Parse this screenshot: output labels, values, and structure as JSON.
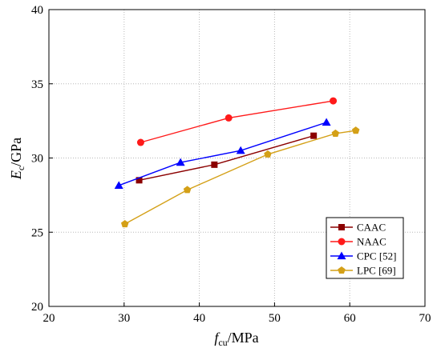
{
  "chart_data": {
    "type": "line",
    "xlabel": {
      "main": "f",
      "sub": "cu",
      "unit": "/MPa"
    },
    "ylabel": {
      "main": "E",
      "sub": "c",
      "unit": "/GPa"
    },
    "xlim": [
      20,
      70
    ],
    "ylim": [
      20,
      40
    ],
    "xticks": [
      20,
      30,
      40,
      50,
      60,
      70
    ],
    "yticks": [
      20,
      25,
      30,
      35,
      40
    ],
    "grid": true,
    "legend_position": "bottom-right",
    "series": [
      {
        "name": "CAAC",
        "color": "#8b0000",
        "marker": "square",
        "points": [
          [
            32.0,
            28.5
          ],
          [
            42.0,
            29.55
          ],
          [
            55.2,
            31.5
          ]
        ]
      },
      {
        "name": "NAAC",
        "color": "#ff1a1a",
        "marker": "circle",
        "points": [
          [
            32.2,
            31.05
          ],
          [
            43.9,
            32.7
          ],
          [
            57.8,
            33.85
          ]
        ]
      },
      {
        "name": "CPC [52]",
        "color": "#0000ff",
        "marker": "triangle",
        "points": [
          [
            29.3,
            28.15
          ],
          [
            37.5,
            29.7
          ],
          [
            45.5,
            30.5
          ],
          [
            56.9,
            32.4
          ]
        ]
      },
      {
        "name": "LPC [69]",
        "color": "#d4a017",
        "marker": "pentagon",
        "points": [
          [
            30.1,
            25.55
          ],
          [
            38.4,
            27.85
          ],
          [
            49.1,
            30.25
          ],
          [
            58.1,
            31.65
          ],
          [
            60.8,
            31.85
          ]
        ]
      }
    ]
  }
}
